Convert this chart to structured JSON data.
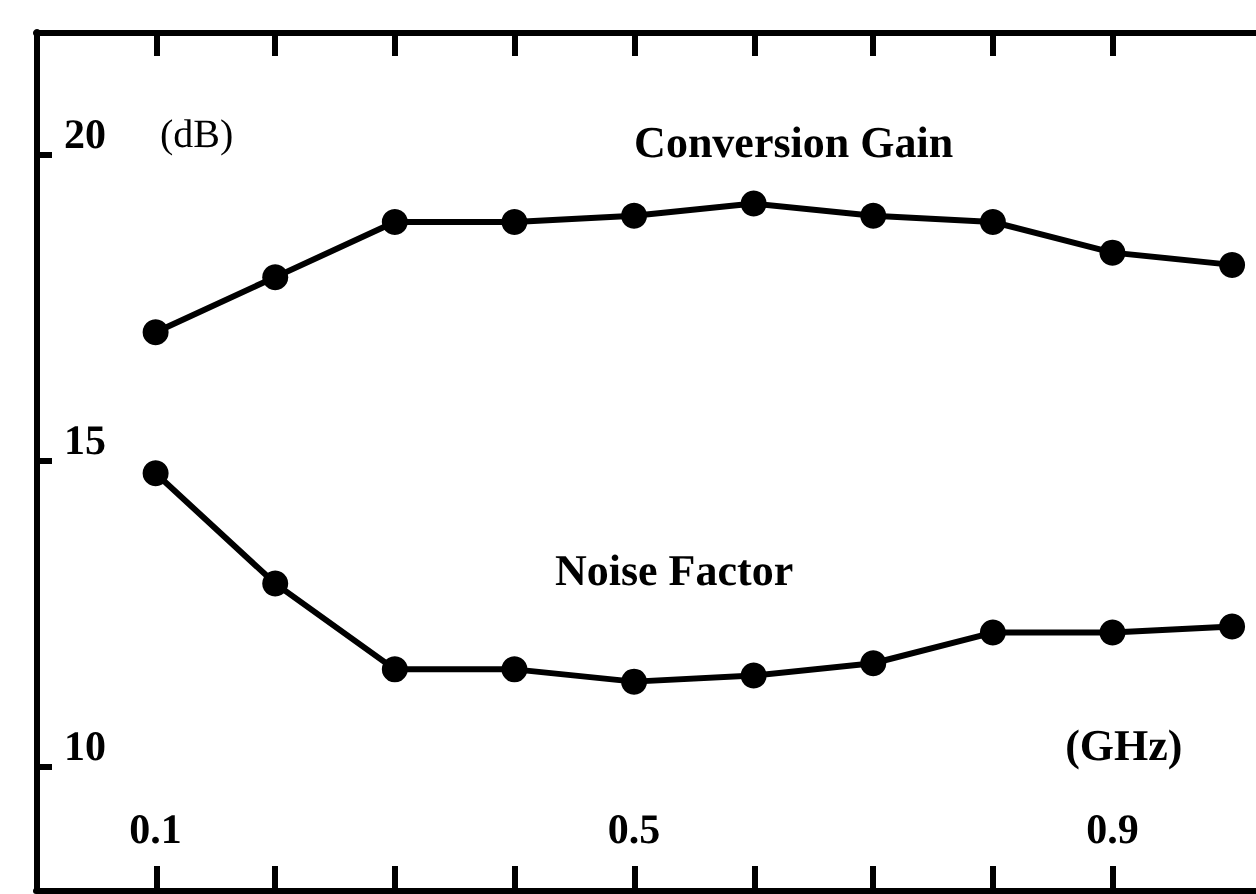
{
  "chart_data": {
    "type": "line",
    "xlabel": "(GHz)",
    "ylabel": "(dB)",
    "x": [
      0.1,
      0.2,
      0.3,
      0.4,
      0.5,
      0.6,
      0.7,
      0.8,
      0.9,
      1.0
    ],
    "series": [
      {
        "name": "Conversion Gain",
        "color": "#000000",
        "values": [
          17.1,
          18.0,
          18.9,
          18.9,
          19.0,
          19.2,
          19.0,
          18.9,
          18.4,
          18.2
        ]
      },
      {
        "name": "Noise Factor",
        "color": "#000000",
        "values": [
          14.8,
          13.0,
          11.6,
          11.6,
          11.4,
          11.5,
          11.7,
          12.2,
          12.2,
          12.3
        ]
      }
    ],
    "xlim": [
      0,
      1.02
    ],
    "ylim": [
      8,
      22
    ],
    "xticks": [
      {
        "value": 0.1,
        "label": "0.1"
      },
      {
        "value": 0.2,
        "label": null
      },
      {
        "value": 0.3,
        "label": null
      },
      {
        "value": 0.4,
        "label": null
      },
      {
        "value": 0.5,
        "label": "0.5"
      },
      {
        "value": 0.6,
        "label": null
      },
      {
        "value": 0.7,
        "label": null
      },
      {
        "value": 0.8,
        "label": null
      },
      {
        "value": 0.9,
        "label": "0.9"
      }
    ],
    "yticks": [
      10,
      15,
      20
    ],
    "grid": false,
    "legend": false,
    "marker": "circle",
    "line_style": "solid"
  }
}
